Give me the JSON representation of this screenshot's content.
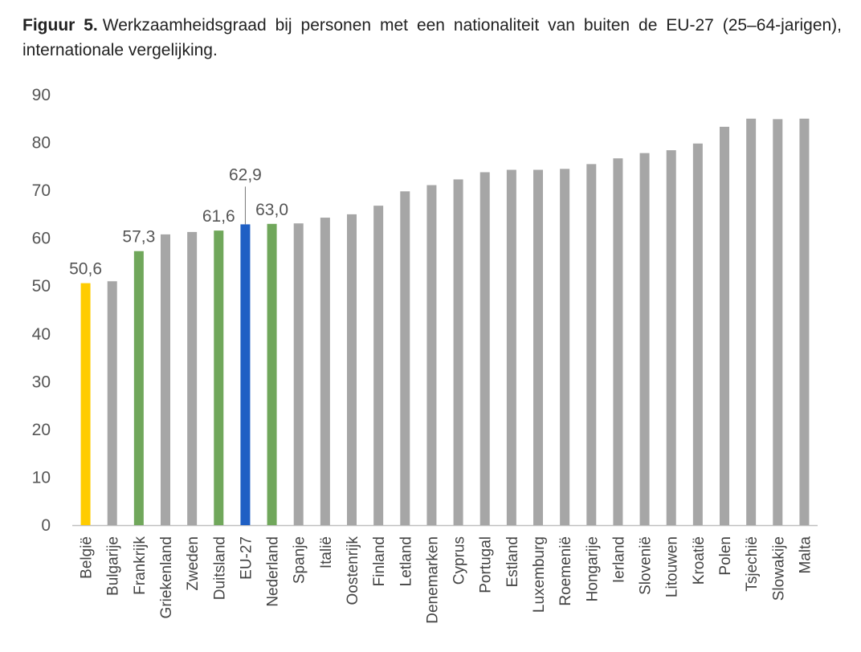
{
  "caption": {
    "label": "Figuur 5.",
    "text": "Werkzaamheidsgraad bij personen met een nationaliteit van buiten de EU-27 (25–64-jarigen), internationale vergelijking."
  },
  "colors": {
    "default": "#a6a6a6",
    "highlight_belgium": "#ffcc00",
    "highlight_neighbours": "#70a75b",
    "highlight_eu": "#1f5fc4",
    "axis": "#bfbfbf"
  },
  "chart_data": {
    "type": "bar",
    "title": "Werkzaamheidsgraad bij personen met een nationaliteit van buiten de EU-27 (25–64-jarigen), internationale vergelijking.",
    "xlabel": "",
    "ylabel": "",
    "ylim": [
      0,
      90
    ],
    "yticks": [
      0,
      10,
      20,
      30,
      40,
      50,
      60,
      70,
      80,
      90
    ],
    "grid": false,
    "categories": [
      "België",
      "Bulgarije",
      "Frankrijk",
      "Griekenland",
      "Zweden",
      "Duitsland",
      "EU-27",
      "Nederland",
      "Spanje",
      "Italië",
      "Oostenrijk",
      "Finland",
      "Letland",
      "Denemarken",
      "Cyprus",
      "Portugal",
      "Estland",
      "Luxemburg",
      "Roemenië",
      "Hongarije",
      "Ierland",
      "Slovenië",
      "Litouwen",
      "Kroatië",
      "Polen",
      "Tsjechië",
      "Slowakije",
      "Malta"
    ],
    "values": [
      50.6,
      51.0,
      57.3,
      60.8,
      61.3,
      61.6,
      62.9,
      63.0,
      63.1,
      64.3,
      65.0,
      66.8,
      69.8,
      71.1,
      72.3,
      73.8,
      74.3,
      74.3,
      74.5,
      75.5,
      76.7,
      77.8,
      78.4,
      79.8,
      83.3,
      85.0,
      84.9,
      85.0
    ],
    "bar_colors": [
      "highlight_belgium",
      "default",
      "highlight_neighbours",
      "default",
      "default",
      "highlight_neighbours",
      "highlight_eu",
      "highlight_neighbours",
      "default",
      "default",
      "default",
      "default",
      "default",
      "default",
      "default",
      "default",
      "default",
      "default",
      "default",
      "default",
      "default",
      "default",
      "default",
      "default",
      "default",
      "default",
      "default",
      "default"
    ],
    "data_labels": [
      {
        "category": "België",
        "text": "50,6"
      },
      {
        "category": "Frankrijk",
        "text": "57,3"
      },
      {
        "category": "Duitsland",
        "text": "61,6"
      },
      {
        "category": "EU-27",
        "text": "62,9",
        "leader_line": true
      },
      {
        "category": "Nederland",
        "text": "63,0"
      }
    ]
  }
}
